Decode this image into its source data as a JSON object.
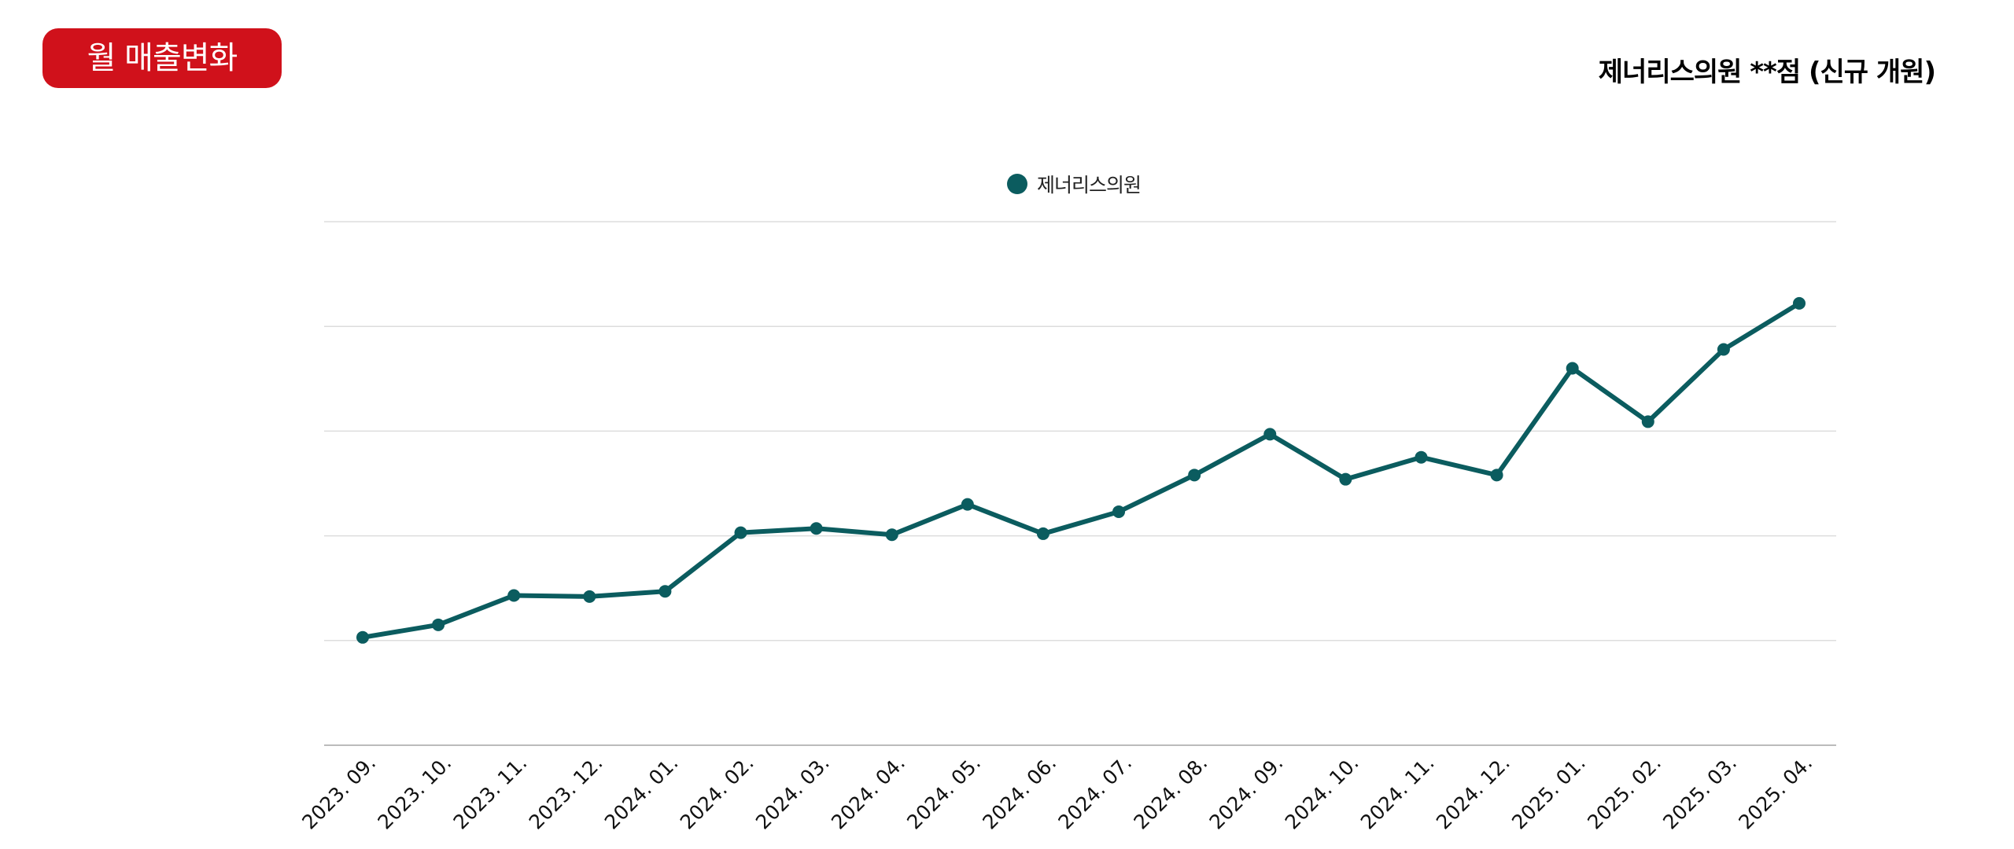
{
  "header": {
    "badge_label": "월 매출변화",
    "store_title": "제너리스의원 **점 (신규 개원)"
  },
  "colors": {
    "badge": "#d0111b",
    "series": "#0b5c5f",
    "grid": "#dddddd"
  },
  "chart_data": {
    "type": "line",
    "title": "",
    "xlabel": "",
    "ylabel": "",
    "legend_position": "top-center",
    "grid": true,
    "y_tick_labels_shown": false,
    "ylim": [
      0,
      5
    ],
    "categories": [
      "2023. 09.",
      "2023. 10.",
      "2023. 11.",
      "2023. 12.",
      "2024. 01.",
      "2024. 02.",
      "2024. 03.",
      "2024. 04.",
      "2024. 05.",
      "2024. 06.",
      "2024. 07.",
      "2024. 08.",
      "2024. 09.",
      "2024. 10.",
      "2024. 11.",
      "2024. 12.",
      "2025. 01.",
      "2025. 02.",
      "2025. 03.",
      "2025. 04."
    ],
    "series": [
      {
        "name": "제너리스의원",
        "values": [
          1.03,
          1.15,
          1.43,
          1.42,
          1.47,
          2.03,
          2.07,
          2.01,
          2.3,
          2.02,
          2.23,
          2.58,
          2.97,
          2.54,
          2.75,
          2.58,
          3.6,
          3.09,
          3.78,
          4.22
        ]
      }
    ]
  }
}
